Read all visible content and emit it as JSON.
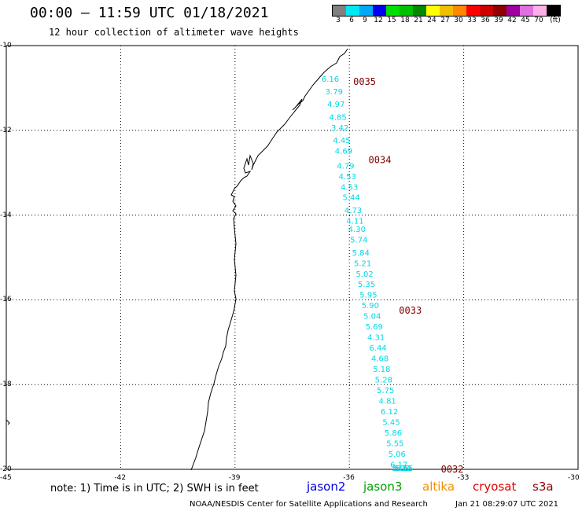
{
  "header": {
    "title": "00:00 – 11:59 UTC 01/18/2021",
    "subtitle": "12 hour collection of altimeter wave heights"
  },
  "legend": {
    "colors": [
      "#808080",
      "#00e8f0",
      "#00a8f8",
      "#0000f0",
      "#00e000",
      "#00c000",
      "#008800",
      "#ffff00",
      "#f0c000",
      "#ff8800",
      "#ff0000",
      "#d00000",
      "#900000",
      "#a000a0",
      "#e070e0",
      "#ffb0e8",
      "#000000"
    ],
    "labels": [
      "3",
      "6",
      "9",
      "12",
      "15",
      "18",
      "21",
      "24",
      "27",
      "30",
      "33",
      "36",
      "39",
      "42",
      "45",
      "70",
      "(ft)"
    ]
  },
  "axes": {
    "y_ticks": [
      "-10",
      "-12",
      "-14",
      "-16",
      "-18",
      "-20"
    ],
    "x_ticks": [
      "-45",
      "-42",
      "-39",
      "-36",
      "-33",
      "-30"
    ]
  },
  "chart_data": {
    "type": "scatter",
    "title": "12 hour collection of altimeter wave heights",
    "xlim": [
      -45,
      -30
    ],
    "ylim": [
      -20,
      -10
    ],
    "xlabel": "",
    "ylabel": "",
    "grid": true,
    "series": [
      {
        "name": "jason3",
        "color": "#00d8e8",
        "points": [
          {
            "lon": -36.5,
            "lat": -10.85,
            "swh": "6.16"
          },
          {
            "lon": -36.4,
            "lat": -11.15,
            "swh": "3.79"
          },
          {
            "lon": -36.35,
            "lat": -11.45,
            "swh": "4.97"
          },
          {
            "lon": -36.3,
            "lat": -11.75,
            "swh": "4.85"
          },
          {
            "lon": -36.25,
            "lat": -12.0,
            "swh": "3.42"
          },
          {
            "lon": -36.2,
            "lat": -12.3,
            "swh": "4.45"
          },
          {
            "lon": -36.15,
            "lat": -12.55,
            "swh": "4.69"
          },
          {
            "lon": -36.1,
            "lat": -12.9,
            "swh": "4.79"
          },
          {
            "lon": -36.05,
            "lat": -13.15,
            "swh": "4.53"
          },
          {
            "lon": -36.0,
            "lat": -13.4,
            "swh": "4.53"
          },
          {
            "lon": -35.95,
            "lat": -13.65,
            "swh": "5.44"
          },
          {
            "lon": -35.9,
            "lat": -13.95,
            "swh": "4.73"
          },
          {
            "lon": -35.85,
            "lat": -14.2,
            "swh": "4.11"
          },
          {
            "lon": -35.8,
            "lat": -14.4,
            "swh": "4.30"
          },
          {
            "lon": -35.75,
            "lat": -14.65,
            "swh": "5.74"
          },
          {
            "lon": -35.7,
            "lat": -14.95,
            "swh": "5.84"
          },
          {
            "lon": -35.65,
            "lat": -15.2,
            "swh": "5.21"
          },
          {
            "lon": -35.6,
            "lat": -15.45,
            "swh": "5.02"
          },
          {
            "lon": -35.55,
            "lat": -15.7,
            "swh": "5.35"
          },
          {
            "lon": -35.5,
            "lat": -15.95,
            "swh": "5.95"
          },
          {
            "lon": -35.45,
            "lat": -16.2,
            "swh": "5.90"
          },
          {
            "lon": -35.4,
            "lat": -16.45,
            "swh": "5.04"
          },
          {
            "lon": -35.35,
            "lat": -16.7,
            "swh": "5.69"
          },
          {
            "lon": -35.3,
            "lat": -16.95,
            "swh": "4.31"
          },
          {
            "lon": -35.25,
            "lat": -17.2,
            "swh": "6.44"
          },
          {
            "lon": -35.2,
            "lat": -17.45,
            "swh": "4.68"
          },
          {
            "lon": -35.15,
            "lat": -17.7,
            "swh": "5.18"
          },
          {
            "lon": -35.1,
            "lat": -17.95,
            "swh": "5.28"
          },
          {
            "lon": -35.05,
            "lat": -18.2,
            "swh": "5.75"
          },
          {
            "lon": -35.0,
            "lat": -18.45,
            "swh": "4.81"
          },
          {
            "lon": -34.95,
            "lat": -18.7,
            "swh": "6.12"
          },
          {
            "lon": -34.9,
            "lat": -18.95,
            "swh": "5.45"
          },
          {
            "lon": -34.85,
            "lat": -19.2,
            "swh": "5.86"
          },
          {
            "lon": -34.8,
            "lat": -19.45,
            "swh": "5.55"
          },
          {
            "lon": -34.75,
            "lat": -19.7,
            "swh": "5.06"
          },
          {
            "lon": -34.7,
            "lat": -19.95,
            "swh": "6.17"
          },
          {
            "lon": -34.65,
            "lat": -20.2,
            "swh": "5.08"
          },
          {
            "lon": -34.6,
            "lat": -20.35,
            "swh": "5.22"
          },
          {
            "lon": -34.55,
            "lat": -20.6,
            "swh": "5.55"
          }
        ]
      }
    ],
    "time_labels": [
      {
        "text": "0035",
        "lon": -35.6,
        "lat": -10.85
      },
      {
        "text": "0034",
        "lon": -35.2,
        "lat": -12.7
      },
      {
        "text": "0033",
        "lon": -34.4,
        "lat": -16.25
      },
      {
        "text": "0032",
        "lon": -33.3,
        "lat": -20.0
      }
    ]
  },
  "note": "note: 1) Time is in UTC; 2) SWH is in feet",
  "satellites": [
    {
      "name": "jason2",
      "color": "#0000e0"
    },
    {
      "name": "jason3",
      "color": "#00a000"
    },
    {
      "name": "altika",
      "color": "#f09000"
    },
    {
      "name": "cryosat",
      "color": "#e00000"
    },
    {
      "name": "s3a",
      "color": "#900000"
    }
  ],
  "footer": {
    "credit": "NOAA/NESDIS Center for Satellite Applications and Research",
    "timestamp": "Jan 21 08:29:07 UTC 2021"
  }
}
